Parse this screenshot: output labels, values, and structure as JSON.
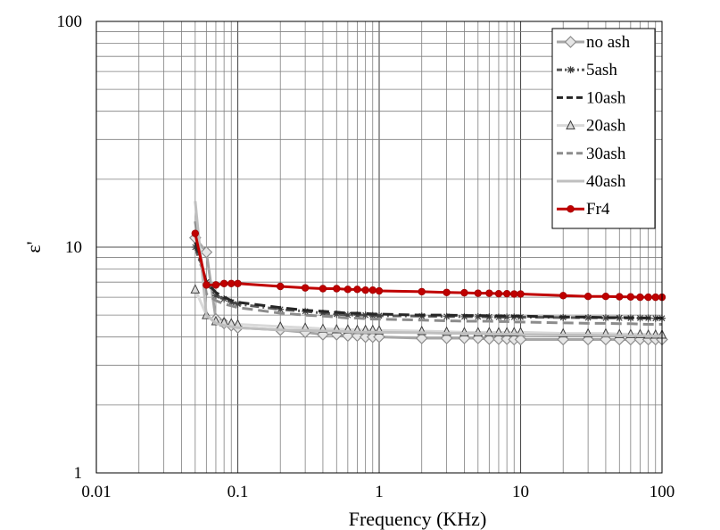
{
  "chart_data": {
    "type": "line",
    "xscale": "log",
    "yscale": "log",
    "xlim": [
      0.01,
      100
    ],
    "ylim": [
      1,
      100
    ],
    "xlabel": "Frequency (KHz)",
    "ylabel": "ε'",
    "title": "",
    "grid": true,
    "legend_position": "top-right",
    "x_tick_labels": [
      "0.01",
      "0.1",
      "1",
      "10",
      "100"
    ],
    "y_tick_labels": [
      "1",
      "10",
      "100"
    ],
    "x": [
      0.05,
      0.06,
      0.07,
      0.08,
      0.09,
      0.1,
      0.2,
      0.3,
      0.4,
      0.5,
      0.6,
      0.7,
      0.8,
      0.9,
      1,
      2,
      3,
      4,
      5,
      6,
      7,
      8,
      9,
      10,
      20,
      30,
      40,
      50,
      60,
      70,
      80,
      90,
      100
    ],
    "series": [
      {
        "name": "no ash",
        "color": "#a6a6a6",
        "dash": "",
        "width": 3,
        "marker": "diamond",
        "values": [
          11.0,
          9.5,
          4.8,
          4.6,
          4.5,
          4.4,
          4.3,
          4.2,
          4.1,
          4.1,
          4.05,
          4.05,
          4.0,
          4.0,
          4.0,
          3.95,
          3.95,
          3.95,
          3.95,
          3.92,
          3.92,
          3.92,
          3.9,
          3.9,
          3.9,
          3.9,
          3.9,
          3.9,
          3.9,
          3.9,
          3.9,
          3.9,
          3.9
        ]
      },
      {
        "name": "5ash",
        "color": "#595959",
        "dash": "10,4,2,4",
        "width": 3,
        "marker": "star",
        "values": [
          10.0,
          7.0,
          6.1,
          5.9,
          5.7,
          5.6,
          5.3,
          5.2,
          5.1,
          5.05,
          5.0,
          5.0,
          5.0,
          4.98,
          4.97,
          4.95,
          4.93,
          4.92,
          4.92,
          4.91,
          4.9,
          4.9,
          4.9,
          4.9,
          4.88,
          4.87,
          4.86,
          4.86,
          4.85,
          4.85,
          4.85,
          4.84,
          4.84
        ]
      },
      {
        "name": "10ash",
        "color": "#262626",
        "dash": "12,6",
        "width": 3,
        "marker": "none",
        "values": [
          10.5,
          7.0,
          6.3,
          6.0,
          5.8,
          5.7,
          5.4,
          5.25,
          5.2,
          5.15,
          5.1,
          5.1,
          5.08,
          5.06,
          5.05,
          5.0,
          5.0,
          4.98,
          4.98,
          4.97,
          4.96,
          4.96,
          4.95,
          4.95,
          4.9,
          4.9,
          4.88,
          4.88,
          4.87,
          4.86,
          4.86,
          4.85,
          4.85
        ]
      },
      {
        "name": "20ash",
        "color": "#d9d9d9",
        "dash": "",
        "width": 3,
        "marker": "triangle",
        "values": [
          6.5,
          5.0,
          4.7,
          4.65,
          4.6,
          4.55,
          4.45,
          4.4,
          4.35,
          4.33,
          4.32,
          4.3,
          4.3,
          4.3,
          4.28,
          4.25,
          4.22,
          4.2,
          4.2,
          4.2,
          4.2,
          4.2,
          4.2,
          4.2,
          4.15,
          4.15,
          4.15,
          4.12,
          4.12,
          4.12,
          4.1,
          4.1,
          4.1
        ]
      },
      {
        "name": "30ash",
        "color": "#8c8c8c",
        "dash": "12,6",
        "width": 3,
        "marker": "none",
        "values": [
          13.0,
          6.2,
          5.8,
          5.6,
          5.5,
          5.4,
          5.1,
          5.0,
          4.95,
          4.9,
          4.85,
          4.85,
          4.82,
          4.8,
          4.8,
          4.75,
          4.72,
          4.7,
          4.7,
          4.7,
          4.68,
          4.68,
          4.66,
          4.66,
          4.62,
          4.6,
          4.6,
          4.58,
          4.58,
          4.56,
          4.55,
          4.55,
          4.55
        ]
      },
      {
        "name": "40ash",
        "color": "#bfbfbf",
        "dash": "",
        "width": 3,
        "marker": "none",
        "values": [
          16.0,
          5.0,
          4.6,
          4.5,
          4.45,
          4.4,
          4.3,
          4.28,
          4.25,
          4.25,
          4.22,
          4.2,
          4.2,
          4.2,
          4.2,
          4.18,
          4.15,
          4.15,
          4.15,
          4.12,
          4.12,
          4.12,
          4.12,
          4.1,
          4.08,
          4.08,
          4.06,
          4.06,
          4.05,
          4.05,
          4.05,
          4.04,
          4.04
        ]
      },
      {
        "name": "Fr4",
        "color": "#c00000",
        "dash": "",
        "width": 3,
        "marker": "circle",
        "values": [
          11.5,
          6.8,
          6.8,
          6.9,
          6.9,
          6.9,
          6.7,
          6.6,
          6.55,
          6.55,
          6.5,
          6.5,
          6.45,
          6.45,
          6.4,
          6.35,
          6.3,
          6.28,
          6.25,
          6.25,
          6.22,
          6.22,
          6.2,
          6.2,
          6.1,
          6.05,
          6.05,
          6.03,
          6.02,
          6.0,
          6.0,
          6.0,
          6.0
        ]
      }
    ]
  }
}
